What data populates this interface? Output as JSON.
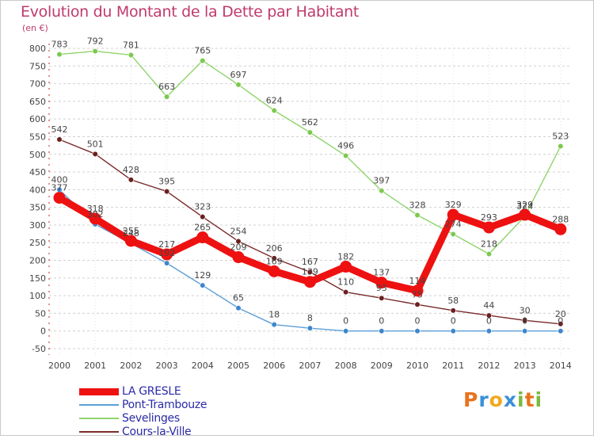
{
  "chart_data": {
    "type": "line",
    "title": "Evolution du Montant de la Dette par Habitant",
    "ylabel": "(en €)",
    "xlabel": "",
    "x": [
      "2000",
      "2001",
      "2002",
      "2003",
      "2004",
      "2005",
      "2006",
      "2007",
      "2008",
      "2009",
      "2010",
      "2011",
      "2012",
      "2013",
      "2014"
    ],
    "ylim": [
      -50,
      800
    ],
    "yticks": [
      -50,
      0,
      50,
      100,
      150,
      200,
      250,
      300,
      350,
      400,
      450,
      500,
      550,
      600,
      650,
      700,
      750,
      800
    ],
    "grid": "horizontal dashed",
    "legend_position": "bottom-left",
    "series": [
      {
        "name": "Sevelinges",
        "color": "#8fd46c",
        "marker": "#7cc94e",
        "values": [
          783,
          792,
          781,
          663,
          765,
          697,
          624,
          562,
          496,
          397,
          328,
          274,
          218,
          324,
          523
        ]
      },
      {
        "name": "Cours-la-Ville",
        "color": "#7a2b2b",
        "marker": "#6b1f1f",
        "values": [
          542,
          501,
          428,
          395,
          323,
          254,
          206,
          167,
          110,
          93,
          75,
          58,
          44,
          30,
          20
        ]
      },
      {
        "name": "Pont-Trambouze",
        "color": "#5b9fd8",
        "marker": "#3f86cc",
        "values": [
          400,
          302,
          248,
          192,
          129,
          65,
          18,
          8,
          0,
          0,
          0,
          0,
          0,
          0,
          0
        ]
      },
      {
        "name": "LA GRESLE",
        "color": "#ee1111",
        "marker": "#dd0000",
        "values": [
          377,
          318,
          255,
          217,
          265,
          209,
          169,
          139,
          182,
          137,
          114,
          329,
          293,
          329,
          288
        ]
      }
    ],
    "data_labels": {
      "Sevelinges": [
        "783",
        "792",
        "781",
        "663",
        "765",
        "697",
        "624",
        "562",
        "496",
        "397",
        "328",
        "274",
        "218",
        "324",
        "523"
      ],
      "Cours-la-Ville": [
        "542",
        "501",
        "428",
        "395",
        "323",
        "254",
        "206",
        "167",
        "110",
        "93",
        "75",
        "58",
        "44",
        "30",
        "20"
      ],
      "Pont-Trambouze": [
        "400",
        "302",
        "248",
        "192",
        "129",
        "65",
        "18",
        "8",
        "0",
        "0",
        "0",
        "0",
        "0",
        "0",
        "0"
      ],
      "LA GRESLE": [
        "377",
        "318",
        "255",
        "217",
        "265",
        "209",
        "169",
        "139",
        "182",
        "137",
        "114",
        "329",
        "293",
        "329",
        "288"
      ]
    }
  },
  "legend": {
    "items": [
      {
        "label": "LA GRESLE",
        "color": "#ee1111",
        "thickness": 9
      },
      {
        "label": "Pont-Trambouze",
        "color": "#5b9fd8",
        "thickness": 2
      },
      {
        "label": "Sevelinges",
        "color": "#8fd46c",
        "thickness": 2
      },
      {
        "label": "Cours-la-Ville",
        "color": "#7a2b2b",
        "thickness": 2
      }
    ]
  },
  "logo": {
    "letters": [
      "P",
      "r",
      "o",
      "x",
      "i",
      "t",
      "i"
    ],
    "colors": [
      "#e8731c",
      "#3a8fd9",
      "#f2a81e",
      "#3a8fd9",
      "#7ab940",
      "#e8731c",
      "#7ab940"
    ]
  }
}
